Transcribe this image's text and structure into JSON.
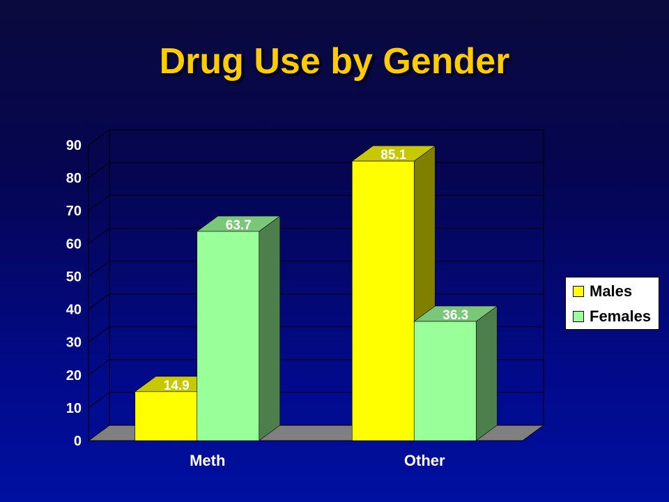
{
  "title": "Drug Use by Gender",
  "chart_data": {
    "type": "bar",
    "categories": [
      "Meth",
      "Other"
    ],
    "series": [
      {
        "name": "Males",
        "values": [
          14.9,
          85.1
        ],
        "color": "#ffff00",
        "top_color": "#c8c800",
        "side_color": "#808000"
      },
      {
        "name": "Females",
        "values": [
          63.7,
          36.3
        ],
        "color": "#99ff99",
        "top_color": "#7ac77a",
        "side_color": "#4c7f4c"
      }
    ],
    "ylim": [
      0,
      90
    ],
    "yticks": [
      "0",
      "10",
      "20",
      "30",
      "40",
      "50",
      "60",
      "70",
      "80",
      "90"
    ],
    "data_labels": [
      [
        "14.9",
        "85.1"
      ],
      [
        "63.7",
        "36.3"
      ]
    ],
    "grid": true,
    "legend": "right",
    "three_d": true
  }
}
